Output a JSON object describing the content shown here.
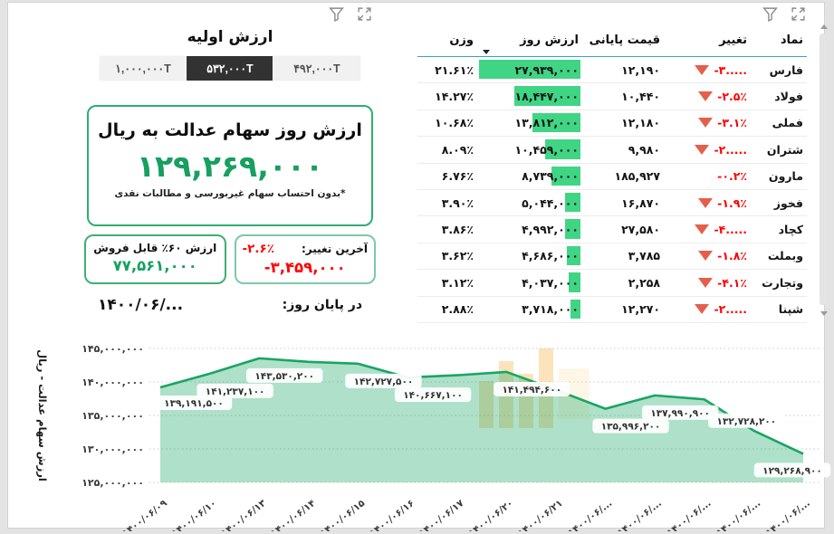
{
  "colors": {
    "accent_green": "#17a05f",
    "negative_red": "#ff0000",
    "bar_green": "#3fd584",
    "triangle_red": "#e4604d",
    "header_underline_blue": "#3f9bd8",
    "chart_line": "#1aa563",
    "chart_fill": "rgba(26,165,99,0.35)",
    "selected_button_bg": "#323232"
  },
  "left_panel": {
    "title": "ارزش اولیه",
    "buttons": [
      {
        "label": "۱,۰۰۰,۰۰۰T",
        "selected": false
      },
      {
        "label": "۵۳۲,۰۰۰T",
        "selected": true
      },
      {
        "label": "۴۹۲,۰۰۰T",
        "selected": false
      }
    ],
    "main_box": {
      "title": "ارزش روز سهام عدالت به ریال",
      "value": "۱۲۹,۲۶۹,۰۰۰",
      "footnote": "*بدون احتساب سهام غیربورسی و مطالبات نقدی"
    },
    "last_change_box": {
      "label": "آخرین تغییر:",
      "percent": "-۲.۶٪",
      "amount": "-۳,۴۵۹,۰۰۰"
    },
    "sellable_box": {
      "label": "ارزش ۶۰٪ قابل فروش",
      "value": "۷۷,۵۶۱,۰۰۰"
    },
    "end_of_day": {
      "label": "در پایان روز:",
      "date": "۱۴۰۰/۰۶/..."
    }
  },
  "table": {
    "columns": {
      "symbol": "نماد",
      "change": "تغییر",
      "close": "قیمت پایانی",
      "day_value": "ارزش روز",
      "weight": "وزن"
    },
    "rows": [
      {
        "symbol": "فارس",
        "change": "-۳.....",
        "triangle": true,
        "close": "۱۲,۱۹۰",
        "day_value": "۲۷,۹۳۹,۰۰۰",
        "bar_pct": 100,
        "weight": "۲۱.۶۱٪"
      },
      {
        "symbol": "فولاد",
        "change": "-۲.۵٪",
        "triangle": true,
        "close": "۱۰,۴۴۰",
        "day_value": "۱۸,۴۴۷,۰۰۰",
        "bar_pct": 66,
        "weight": "۱۴.۲۷٪"
      },
      {
        "symbol": "فملی",
        "change": "-۳.۱٪",
        "triangle": true,
        "close": "۱۲,۱۸۰",
        "day_value": "۱۳,۸۱۲,۰۰۰",
        "bar_pct": 49.4,
        "weight": "۱۰.۶۸٪"
      },
      {
        "symbol": "شتران",
        "change": "-۲.....",
        "triangle": true,
        "close": "۹,۹۸۰",
        "day_value": "۱۰,۴۵۹,۰۰۰",
        "bar_pct": 37.4,
        "weight": "۸.۰۹٪"
      },
      {
        "symbol": "مارون",
        "change": "-۰.۲٪",
        "triangle": false,
        "close": "۱۸۵,۹۲۷",
        "day_value": "۸,۷۳۹,۰۰۰",
        "bar_pct": 31.3,
        "weight": "۶.۷۶٪"
      },
      {
        "symbol": "فخوز",
        "change": "-۱.۹٪",
        "triangle": true,
        "close": "۱۶,۸۷۰",
        "day_value": "۵,۰۴۴,۰۰۰",
        "bar_pct": 18.1,
        "weight": "۳.۹۰٪"
      },
      {
        "symbol": "کچاد",
        "change": "-۴.....",
        "triangle": true,
        "close": "۲۷,۵۸۰",
        "day_value": "۴,۹۹۲,۰۰۰",
        "bar_pct": 17.9,
        "weight": "۳.۸۶٪"
      },
      {
        "symbol": "وبملت",
        "change": "-۱.۸٪",
        "triangle": true,
        "close": "۳,۷۸۵",
        "day_value": "۴,۶۸۶,۰۰۰",
        "bar_pct": 16.8,
        "weight": "۳.۶۲٪"
      },
      {
        "symbol": "وتجارت",
        "change": "-۴.۱٪",
        "triangle": true,
        "close": "۲,۲۵۸",
        "day_value": "۴,۰۳۷,۰۰۰",
        "bar_pct": 14.4,
        "weight": "۳.۱۲٪"
      },
      {
        "symbol": "شپنا",
        "change": "-۲.....",
        "triangle": true,
        "close": "۱۲,۲۷۰",
        "day_value": "۳,۷۱۸,۰۰۰",
        "bar_pct": 13.3,
        "weight": "۲.۸۸٪"
      }
    ]
  },
  "chart_data": {
    "type": "area",
    "title": "",
    "xlabel": "",
    "ylabel": "ارزش سهام عدالت - ریال",
    "ylim": [
      125000000,
      146500000
    ],
    "grid": "dotted-horizontal",
    "legend": "none",
    "y_ticks": [
      {
        "label": "۱۴۵,۰۰۰,۰۰۰",
        "value": 145000000
      },
      {
        "label": "۱۴۰,۰۰۰,۰۰۰",
        "value": 140000000
      },
      {
        "label": "۱۳۵,۰۰۰,۰۰۰",
        "value": 135000000
      },
      {
        "label": "۱۳۰,۰۰۰,۰۰۰",
        "value": 130000000
      },
      {
        "label": "۱۲۵,۰۰۰,۰۰۰",
        "value": 125000000
      }
    ],
    "x_labels": [
      "۱۴۰۰/۰۶/۰۹",
      "۱۴۰۰/۰۶/۱۰",
      "۱۴۰۰/۰۶/۱۳",
      "۱۴۰۰/۰۶/۱۴",
      "۱۴۰۰/۰۶/۱۵",
      "۱۴۰۰/۰۶/۱۶",
      "۱۴۰۰/۰۶/۱۷",
      "۱۴۰۰/۰۶/۲۰",
      "۱۴۰۰/۰۶/۲۱",
      "۱۴۰۰/۰۶/...",
      "۱۴۰۰/۰۶/...",
      "۱۴۰۰/۰۶/...",
      "۱۴۰۰/۰۶/...",
      "۱۴۰۰/۰۶/..."
    ],
    "values": [
      139191500,
      141237100,
      143530200,
      143000000,
      142727500,
      140667100,
      141000000,
      141494600,
      138800000,
      135996200,
      137990900,
      137400000,
      132728200,
      129268900
    ],
    "point_labels": [
      "۱۳۹,۱۹۱,۵۰۰",
      "۱۴۱,۲۳۷,۱۰۰",
      "۱۴۳,۵۳۰,۲۰۰",
      null,
      "۱۴۲,۷۲۷,۵۰۰",
      "۱۴۰,۶۶۷,۱۰۰",
      null,
      "۱۴۱,۴۹۴,۶۰۰",
      null,
      "۱۳۵,۹۹۶,۲۰۰",
      "۱۳۷,۹۹۰,۹۰۰",
      null,
      "۱۳۲,۷۲۸,۲۰۰",
      "۱۲۹,۲۶۸,۹۰۰"
    ]
  }
}
